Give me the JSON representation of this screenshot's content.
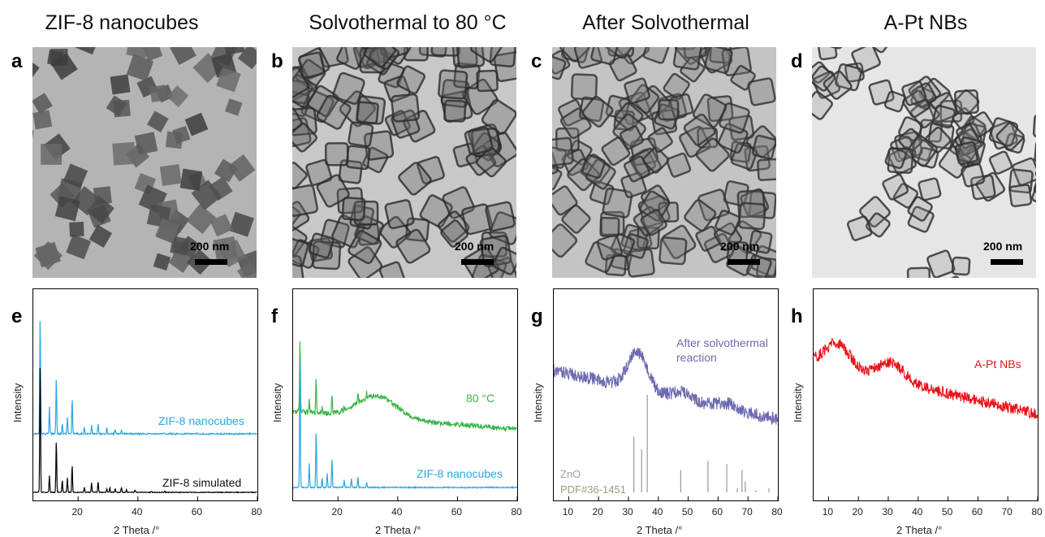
{
  "titles": [
    "ZIF-8 nanocubes",
    "Solvothermal to 80 °C",
    "After Solvothermal",
    "A-Pt NBs"
  ],
  "letters": [
    "a",
    "b",
    "c",
    "d",
    "e",
    "f",
    "g",
    "h"
  ],
  "scalebar_label": "200 nm",
  "colors": {
    "blue": "#29a8df",
    "black": "#000000",
    "green": "#3bb54a",
    "purple": "#6e6ab0",
    "red": "#e8141b",
    "gray": "#999999"
  },
  "chart_data": [
    {
      "type": "line",
      "panel": "e",
      "xlabel": "2 Theta /°",
      "ylabel": "Intensity",
      "xlim": [
        5,
        80
      ],
      "xticks": [
        20,
        40,
        60,
        80
      ],
      "series": [
        {
          "name": "ZIF-8 nanocubes",
          "color": "#29a8df",
          "peaks": [
            [
              7.3,
              100
            ],
            [
              10.4,
              22
            ],
            [
              12.7,
              48
            ],
            [
              14.7,
              8
            ],
            [
              16.4,
              14
            ],
            [
              18.0,
              30
            ],
            [
              22.1,
              6
            ],
            [
              24.5,
              7
            ],
            [
              26.7,
              9
            ],
            [
              29.6,
              5
            ],
            [
              32.4,
              4
            ],
            [
              34.5,
              3
            ]
          ]
        },
        {
          "name": "ZIF-8 simulated",
          "color": "#000000",
          "peaks": [
            [
              7.3,
              110
            ],
            [
              10.4,
              14
            ],
            [
              12.7,
              44
            ],
            [
              14.7,
              10
            ],
            [
              16.4,
              12
            ],
            [
              18.0,
              23
            ],
            [
              22.1,
              4
            ],
            [
              24.5,
              8
            ],
            [
              26.7,
              9
            ],
            [
              29.6,
              3
            ],
            [
              30.6,
              4
            ],
            [
              32.4,
              3
            ],
            [
              34.5,
              4
            ],
            [
              36.2,
              2
            ],
            [
              39.0,
              2
            ],
            [
              44.5,
              1
            ],
            [
              49.0,
              1
            ]
          ]
        }
      ]
    },
    {
      "type": "line",
      "panel": "f",
      "xlabel": "2 Theta /°",
      "ylabel": "Intensity",
      "xlim": [
        5,
        80
      ],
      "xticks": [
        20,
        40,
        60,
        80
      ],
      "series": [
        {
          "name": "80 °C",
          "color": "#3bb54a",
          "peaks": [
            [
              7.3,
              60
            ],
            [
              10.4,
              10
            ],
            [
              12.7,
              30
            ],
            [
              14.7,
              5
            ],
            [
              18.0,
              15
            ],
            [
              22.1,
              4
            ],
            [
              26.7,
              8
            ],
            [
              29.6,
              5
            ]
          ]
        },
        {
          "name": "ZIF-8 nanocubes",
          "color": "#29a8df",
          "peaks": [
            [
              7.3,
              110
            ],
            [
              10.4,
              20
            ],
            [
              12.7,
              48
            ],
            [
              14.7,
              8
            ],
            [
              16.4,
              12
            ],
            [
              18.0,
              25
            ],
            [
              22.1,
              6
            ],
            [
              24.5,
              7
            ],
            [
              26.7,
              9
            ],
            [
              29.6,
              4
            ]
          ]
        }
      ]
    },
    {
      "type": "line",
      "panel": "g",
      "xlabel": "2 Theta /°",
      "ylabel": "Intensity",
      "xlim": [
        5,
        80
      ],
      "xticks": [
        10,
        20,
        30,
        40,
        50,
        60,
        70,
        80
      ],
      "series": [
        {
          "name": "After solvothermal reaction",
          "color": "#6e6ab0"
        }
      ],
      "reference": {
        "name": "ZnO PDF#36-1451",
        "color": "#999999",
        "lines": [
          [
            31.8,
            57
          ],
          [
            34.4,
            44
          ],
          [
            36.3,
            100
          ],
          [
            47.5,
            23
          ],
          [
            56.6,
            32
          ],
          [
            62.9,
            29
          ],
          [
            66.4,
            4
          ],
          [
            68.0,
            23
          ],
          [
            69.1,
            11
          ],
          [
            72.6,
            2
          ],
          [
            77.0,
            4
          ]
        ]
      }
    },
    {
      "type": "line",
      "panel": "h",
      "xlabel": "2 Theta /°",
      "ylabel": "Intensity",
      "xlim": [
        5,
        80
      ],
      "xticks": [
        10,
        20,
        30,
        40,
        50,
        60,
        70,
        80
      ],
      "series": [
        {
          "name": "A-Pt NBs",
          "color": "#e8141b"
        }
      ]
    }
  ],
  "labels": {
    "e_top": "ZIF-8 nanocubes",
    "e_bottom": "ZIF-8 simulated",
    "f_top": "80 °C",
    "f_bottom": "ZIF-8 nanocubes",
    "g_series_1": "After solvothermal",
    "g_series_2": "reaction",
    "g_ref_1": "ZnO",
    "g_ref_2": "PDF#36-1451",
    "h_series": "A-Pt NBs"
  }
}
